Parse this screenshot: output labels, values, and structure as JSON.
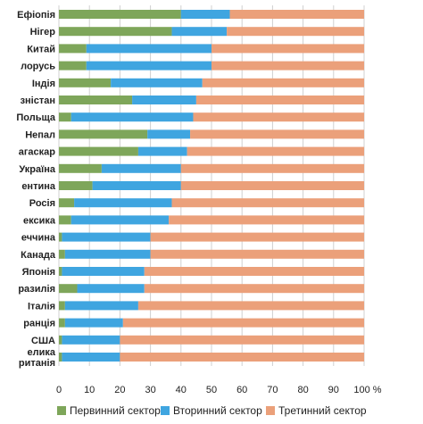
{
  "chart_data": {
    "type": "bar",
    "orientation": "horizontal",
    "stacked": true,
    "title": "",
    "xlabel": "",
    "ylabel": "",
    "categories": [
      "Ефіопія",
      "Нігер",
      "Китай",
      "лорусь",
      "Індія",
      "зністан",
      "Польща",
      "Непал",
      "агаскар",
      "Україна",
      "ентина",
      "Росія",
      "ексика",
      "еччина",
      "Канада",
      "Японія",
      "разилія",
      "Італія",
      "ранція",
      "США",
      "елика\nританія"
    ],
    "series": [
      {
        "name": "Первинний сектор",
        "color": "#7ea65a",
        "values": [
          40,
          37,
          9,
          9,
          17,
          24,
          4,
          29,
          26,
          14,
          11,
          5,
          4,
          1,
          2,
          1,
          6,
          2,
          2,
          1,
          1
        ]
      },
      {
        "name": "Вторинний сектор",
        "color": "#3fa5e0",
        "values": [
          16,
          18,
          41,
          41,
          30,
          21,
          40,
          14,
          16,
          26,
          29,
          32,
          32,
          29,
          28,
          27,
          22,
          24,
          19,
          19,
          19
        ]
      },
      {
        "name": "Третинний сектор",
        "color": "#eba07a",
        "values": [
          44,
          45,
          50,
          50,
          53,
          55,
          56,
          57,
          58,
          60,
          60,
          63,
          64,
          70,
          70,
          72,
          72,
          74,
          79,
          80,
          80
        ]
      }
    ],
    "xlim": [
      0,
      100
    ],
    "xticks": [
      "0",
      "10",
      "20",
      "30",
      "40",
      "50",
      "60",
      "70",
      "80",
      "90",
      "100 %"
    ],
    "grid": "vertical",
    "legend": "bottom"
  }
}
